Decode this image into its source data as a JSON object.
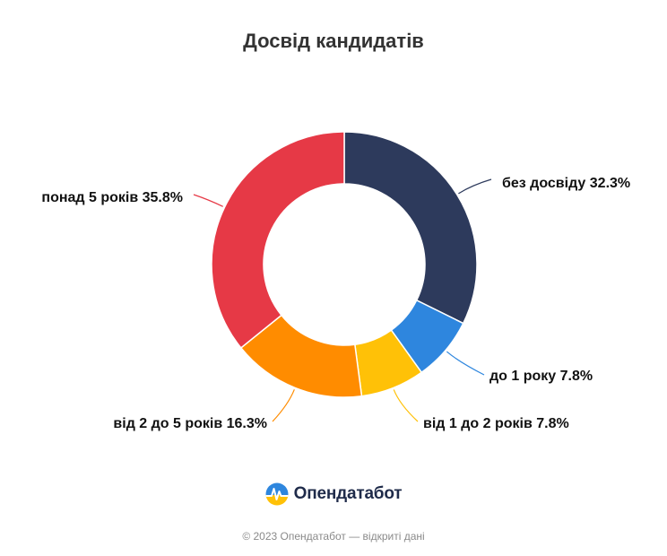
{
  "chart_data": {
    "type": "pie",
    "variant": "donut",
    "title": "Досвід кандидатів",
    "slices": [
      {
        "label": "без досвіду",
        "value": 32.3,
        "display": "32.3%",
        "color": "#2d3a5c"
      },
      {
        "label": "до 1 року",
        "value": 7.8,
        "display": "7.8%",
        "color": "#2e86de"
      },
      {
        "label": "від 1 до 2 років",
        "value": 7.8,
        "display": "7.8%",
        "color": "#ffc107"
      },
      {
        "label": "від 2 до 5 років",
        "value": 16.3,
        "display": "16.3%",
        "color": "#ff8c00"
      },
      {
        "label": "понад 5 років",
        "value": 35.8,
        "display": "35.8%",
        "color": "#e63946"
      }
    ],
    "legend": "none"
  },
  "brand": {
    "name": "Опендатабот",
    "icon": "opendatabot-logo-icon"
  },
  "footer": {
    "text": "© 2023 Опендатабот — відкриті дані"
  }
}
